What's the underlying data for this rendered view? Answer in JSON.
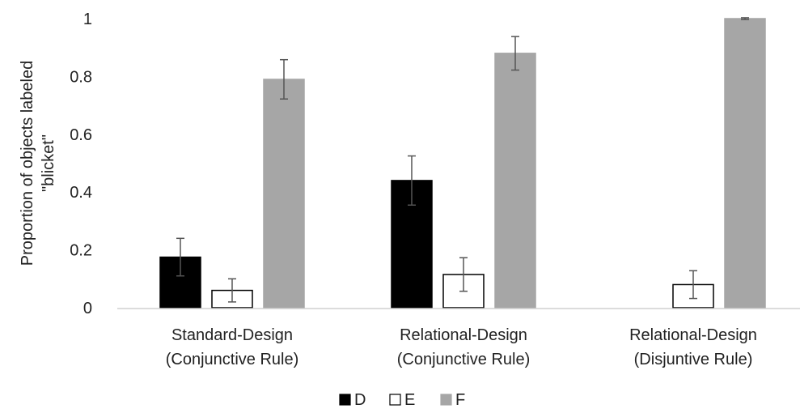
{
  "chart_data": {
    "type": "bar",
    "title": "",
    "ylabel": [
      "Proportion of objects labeled",
      "\"blicket\""
    ],
    "xlabel": "",
    "ylim": [
      0,
      1
    ],
    "yticks": [
      0,
      0.2,
      0.4,
      0.6,
      0.8,
      1
    ],
    "ytick_labels": [
      "0",
      "0.2",
      "0.4",
      "0.6",
      "0.8",
      "1"
    ],
    "categories": [
      [
        "Standard-Design",
        "(Conjunctive Rule)"
      ],
      [
        "Relational-Design",
        "(Conjunctive Rule)"
      ],
      [
        "Relational-Design",
        "(Disjuntive Rule)"
      ]
    ],
    "series": [
      {
        "name": "D",
        "values": [
          0.175,
          0.44,
          0
        ],
        "errors": [
          0.065,
          0.085,
          0
        ],
        "color": "#000000",
        "stroke": "#000000"
      },
      {
        "name": "E",
        "values": [
          0.06,
          0.115,
          0.08
        ],
        "errors": [
          0.04,
          0.058,
          0.048
        ],
        "color": "#ffffff",
        "stroke": "#000000"
      },
      {
        "name": "F",
        "values": [
          0.79,
          0.88,
          1.0
        ],
        "errors": [
          0.068,
          0.058,
          0.003
        ],
        "color": "#a6a6a6",
        "stroke": "#a6a6a6"
      }
    ],
    "grid": false,
    "legend_position": "bottom"
  }
}
